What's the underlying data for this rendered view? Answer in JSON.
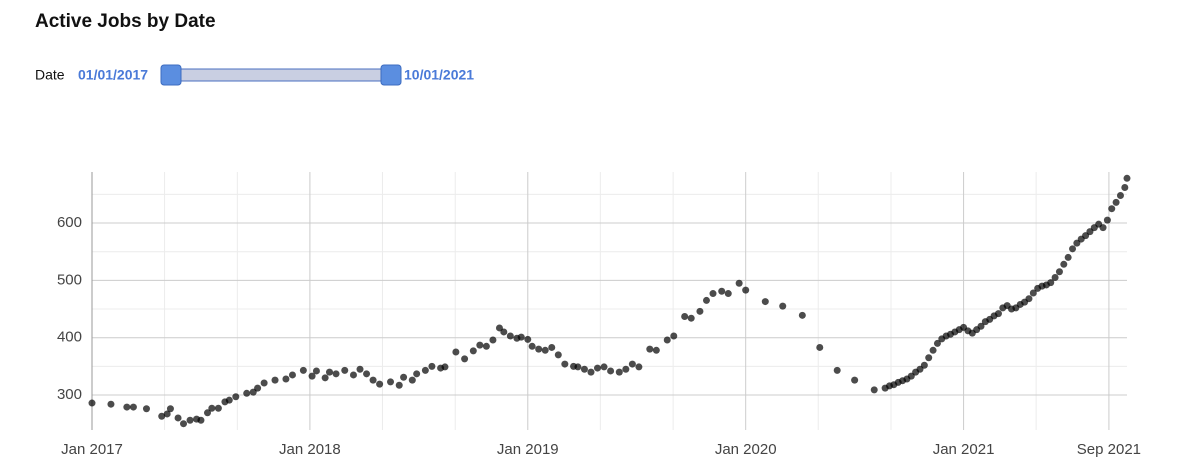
{
  "chart_data": {
    "type": "scatter",
    "title": "Active Jobs by Date",
    "filter": {
      "label": "Date",
      "start": "01/01/2017",
      "end": "10/01/2021"
    },
    "color": "#000000",
    "grid": true,
    "xlim": [
      2017,
      2021.75
    ],
    "xticks": [
      {
        "value": 2017,
        "label": "Jan 2017"
      },
      {
        "value": 2018,
        "label": "Jan 2018"
      },
      {
        "value": 2019,
        "label": "Jan 2019"
      },
      {
        "value": 2020,
        "label": "Jan 2020"
      },
      {
        "value": 2021,
        "label": "Jan 2021"
      },
      {
        "value": 2021.667,
        "label": "Sep 2021"
      }
    ],
    "x_minor_ticks": [
      2017.333,
      2017.667,
      2018.333,
      2018.667,
      2019.333,
      2019.667,
      2020.333,
      2020.667,
      2021.333
    ],
    "ylim": [
      239,
      689
    ],
    "yticks": [
      300,
      400,
      500,
      600
    ],
    "y_minor_ticks": [
      350,
      450,
      550,
      650
    ],
    "x": [
      2017.0,
      2017.087,
      2017.16,
      2017.19,
      2017.25,
      2017.32,
      2017.345,
      2017.36,
      2017.395,
      2017.42,
      2017.45,
      2017.48,
      2017.5,
      2017.53,
      2017.55,
      2017.58,
      2017.61,
      2017.63,
      2017.66,
      2017.71,
      2017.74,
      2017.76,
      2017.79,
      2017.84,
      2017.89,
      2017.92,
      2017.97,
      2018.01,
      2018.03,
      2018.07,
      2018.09,
      2018.12,
      2018.16,
      2018.2,
      2018.23,
      2018.26,
      2018.29,
      2018.32,
      2018.37,
      2018.41,
      2018.43,
      2018.47,
      2018.49,
      2018.53,
      2018.56,
      2018.6,
      2018.62,
      2018.67,
      2018.71,
      2018.75,
      2018.78,
      2018.81,
      2018.84,
      2018.87,
      2018.89,
      2018.92,
      2018.95,
      2018.97,
      2019.0,
      2019.02,
      2019.05,
      2019.08,
      2019.11,
      2019.14,
      2019.17,
      2019.21,
      2019.23,
      2019.26,
      2019.29,
      2019.32,
      2019.35,
      2019.38,
      2019.42,
      2019.45,
      2019.48,
      2019.51,
      2019.56,
      2019.59,
      2019.64,
      2019.67,
      2019.72,
      2019.75,
      2019.79,
      2019.82,
      2019.85,
      2019.89,
      2019.92,
      2019.97,
      2020.0,
      2020.09,
      2020.17,
      2020.26,
      2020.34,
      2020.42,
      2020.5,
      2020.59,
      2020.64,
      2020.66,
      2020.68,
      2020.7,
      2020.72,
      2020.74,
      2020.76,
      2020.78,
      2020.8,
      2020.82,
      2020.84,
      2020.86,
      2020.88,
      2020.9,
      2020.92,
      2020.94,
      2020.96,
      2020.98,
      2021.0,
      2021.02,
      2021.04,
      2021.06,
      2021.08,
      2021.1,
      2021.12,
      2021.14,
      2021.16,
      2021.18,
      2021.2,
      2021.22,
      2021.24,
      2021.26,
      2021.28,
      2021.3,
      2021.32,
      2021.34,
      2021.36,
      2021.38,
      2021.4,
      2021.42,
      2021.44,
      2021.46,
      2021.48,
      2021.5,
      2021.52,
      2021.54,
      2021.56,
      2021.58,
      2021.6,
      2021.62,
      2021.64,
      2021.66,
      2021.68,
      2021.7,
      2021.72,
      2021.74,
      2021.75
    ],
    "values": [
      286,
      284,
      279,
      279,
      276,
      263,
      267,
      276,
      260,
      250,
      256,
      258,
      256,
      269,
      277,
      277,
      288,
      291,
      297,
      303,
      305,
      312,
      321,
      326,
      328,
      335,
      343,
      333,
      342,
      330,
      340,
      337,
      343,
      335,
      345,
      337,
      326,
      319,
      323,
      317,
      331,
      326,
      337,
      343,
      350,
      347,
      349,
      375,
      363,
      377,
      387,
      385,
      396,
      417,
      410,
      403,
      399,
      401,
      397,
      385,
      380,
      378,
      383,
      370,
      354,
      350,
      349,
      345,
      340,
      347,
      349,
      342,
      340,
      345,
      354,
      349,
      380,
      378,
      396,
      403,
      437,
      434,
      446,
      465,
      477,
      481,
      477,
      495,
      483,
      463,
      455,
      439,
      383,
      343,
      326,
      309,
      312,
      316,
      318,
      322,
      325,
      328,
      333,
      340,
      345,
      352,
      365,
      378,
      390,
      398,
      403,
      406,
      410,
      414,
      418,
      412,
      408,
      414,
      420,
      428,
      432,
      438,
      442,
      452,
      456,
      450,
      452,
      458,
      462,
      468,
      478,
      486,
      490,
      492,
      496,
      505,
      515,
      528,
      540,
      555,
      565,
      572,
      578,
      585,
      592,
      598,
      592,
      605,
      625,
      636,
      648,
      662,
      678
    ]
  }
}
